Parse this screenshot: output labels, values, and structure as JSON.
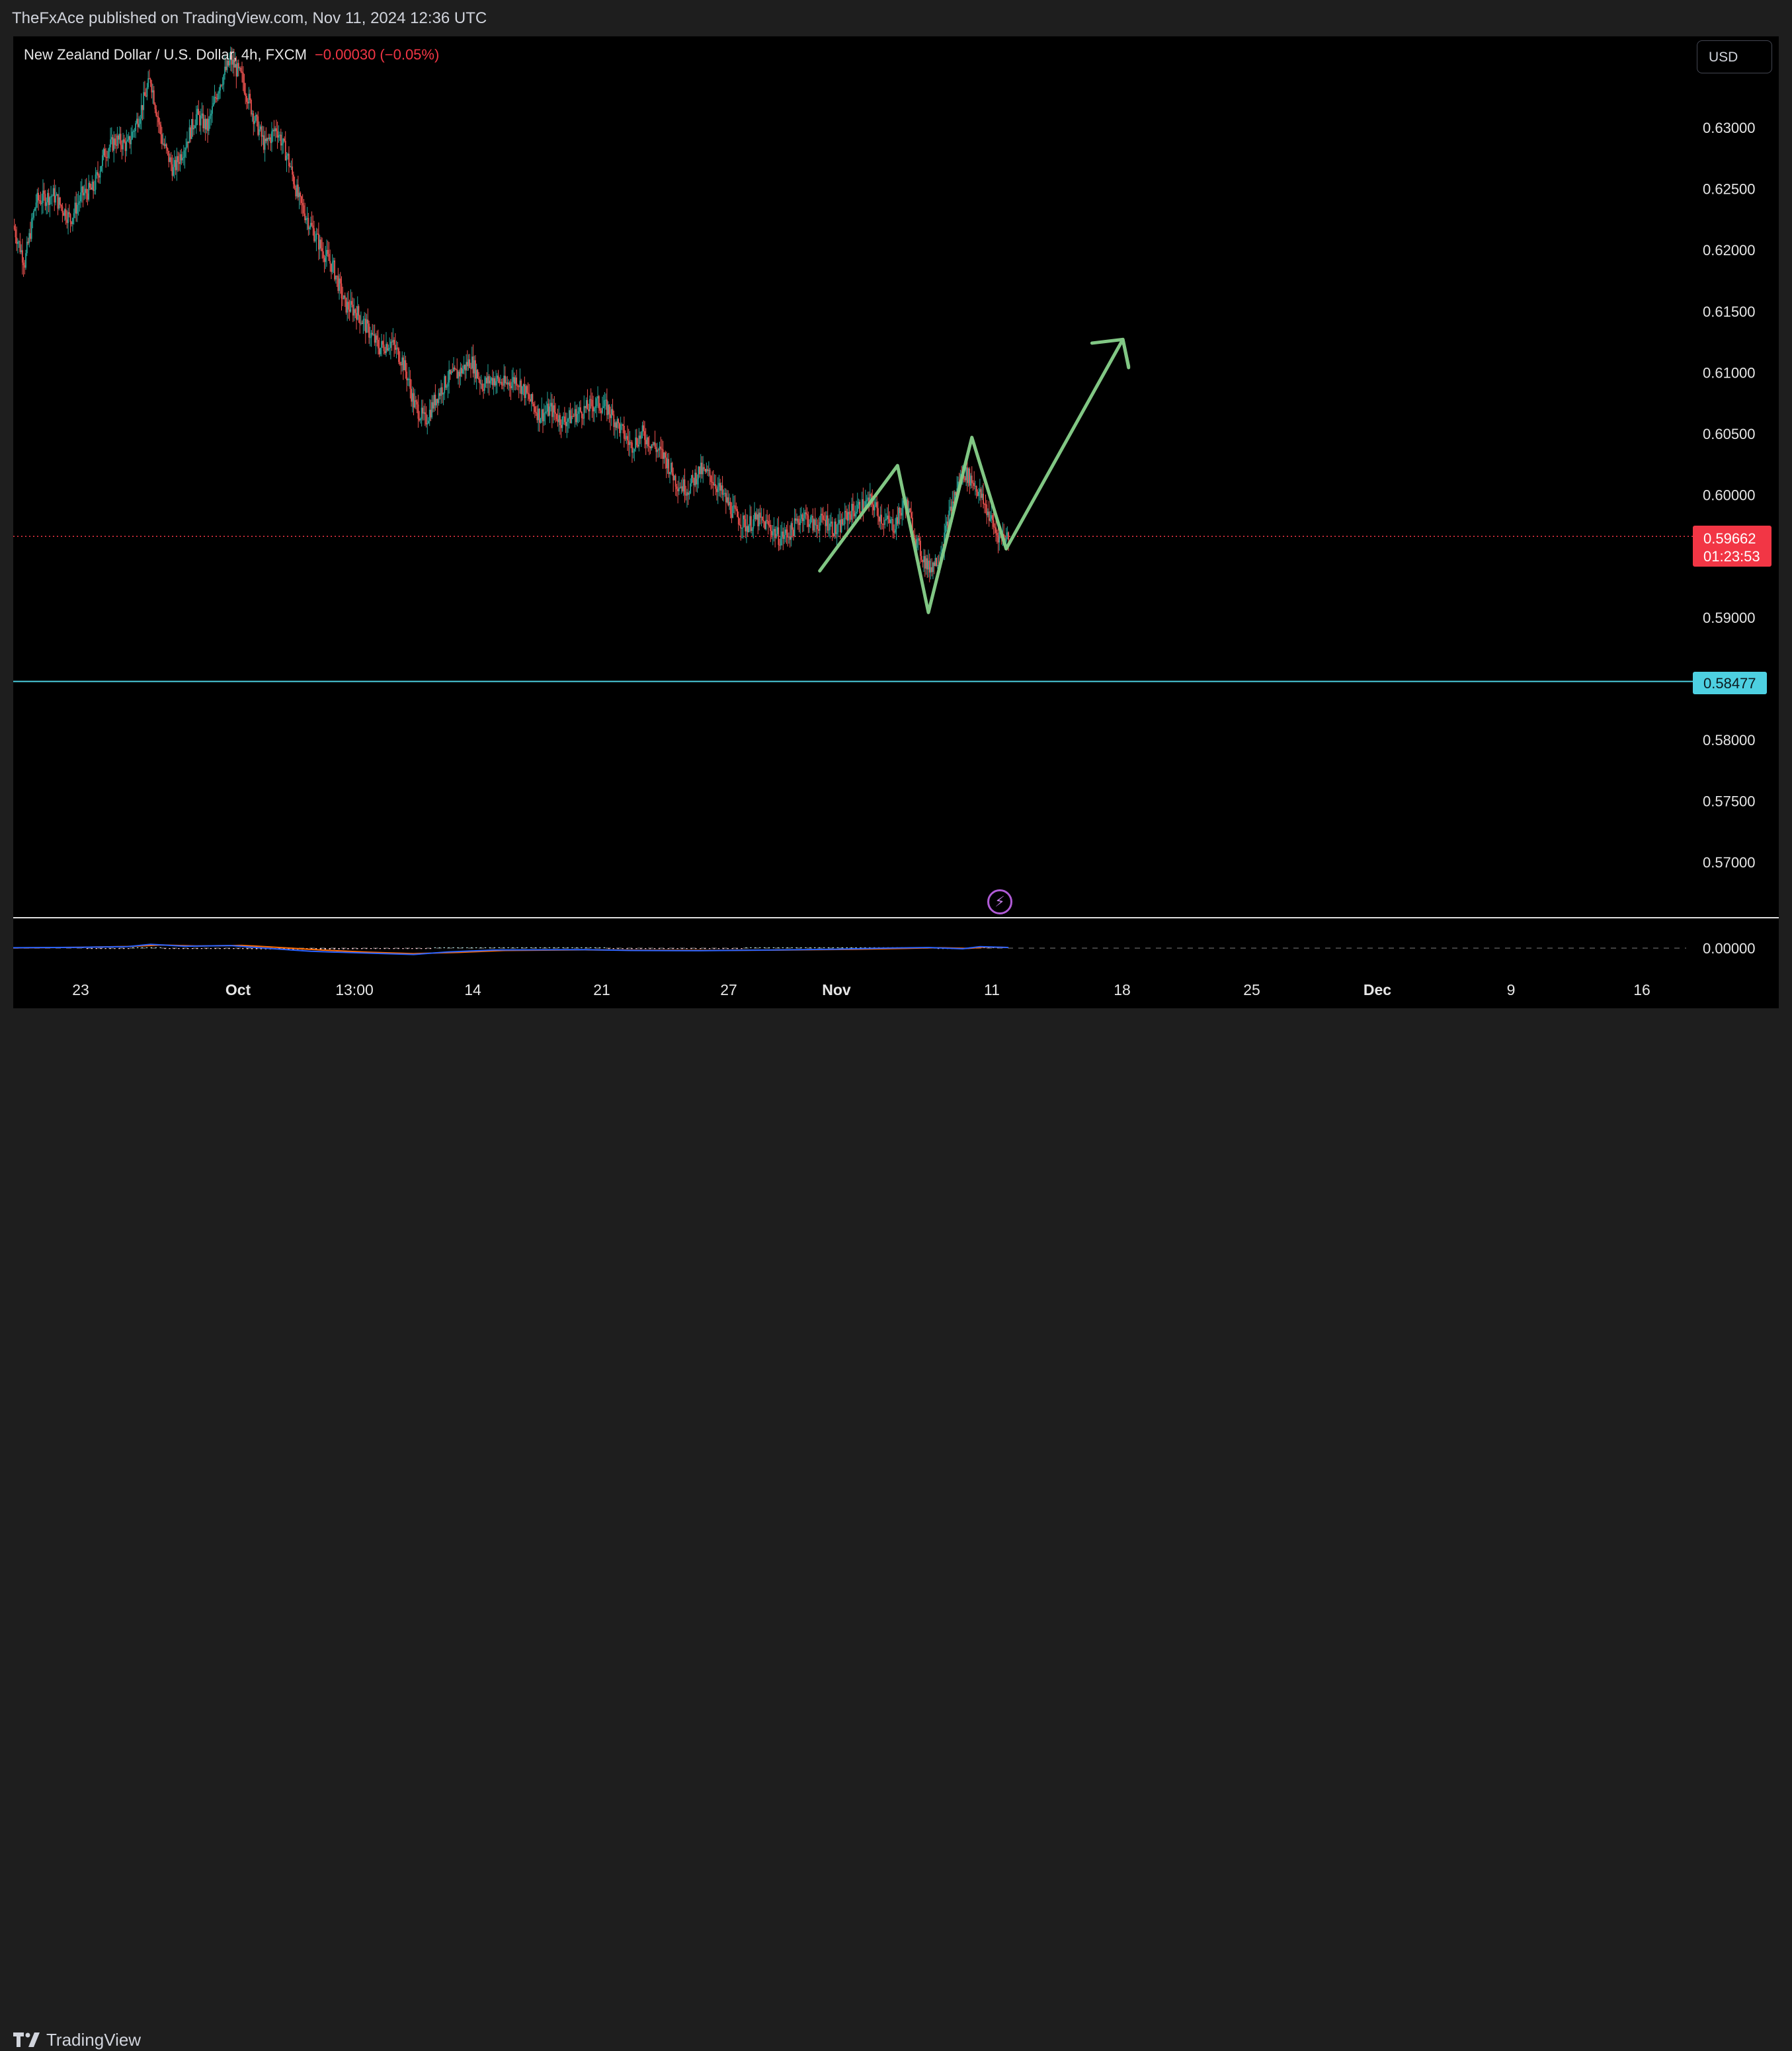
{
  "header": {
    "published": "TheFxAce published on TradingView.com, Nov 11, 2024 12:36 UTC"
  },
  "legend": {
    "symbol": "New Zealand Dollar / U.S. Dollar, 4h, FXCM",
    "change": "−0.00030 (−0.05%)"
  },
  "currency_button": "USD",
  "brand": "TradingView",
  "colors": {
    "up": "#26a69a",
    "down": "#ef5350",
    "drawing": "#81c784",
    "support": "#4dd0e1",
    "current": "#f23645",
    "macd": "#2962ff",
    "signal": "#ff6d00"
  },
  "chart_data": {
    "type": "candlestick",
    "title": "New Zealand Dollar / U.S. Dollar, 4h, FXCM",
    "ylim": [
      0.5665,
      0.6345
    ],
    "y_ticks": [
      "0.63000",
      "0.62500",
      "0.62000",
      "0.61500",
      "0.61000",
      "0.60500",
      "0.60000",
      "0.59000",
      "0.58000",
      "0.57500",
      "0.57000"
    ],
    "x_ticks": [
      "23",
      "Oct",
      "13:00",
      "14",
      "21",
      "27",
      "Nov",
      "11",
      "18",
      "25",
      "Dec",
      "9",
      "16"
    ],
    "last_price": {
      "value": 0.59662,
      "label": "0.59662",
      "countdown": "01:23:53"
    },
    "support_line": {
      "value": 0.58477,
      "label": "0.58477"
    },
    "price_path": [
      [
        0,
        0.622
      ],
      [
        10,
        0.619
      ],
      [
        20,
        0.624
      ],
      [
        35,
        0.6245
      ],
      [
        50,
        0.6225
      ],
      [
        60,
        0.6245
      ],
      [
        70,
        0.625
      ],
      [
        80,
        0.628
      ],
      [
        90,
        0.629
      ],
      [
        100,
        0.6285
      ],
      [
        110,
        0.631
      ],
      [
        120,
        0.634
      ],
      [
        125,
        0.6315
      ],
      [
        130,
        0.629
      ],
      [
        140,
        0.6265
      ],
      [
        150,
        0.6285
      ],
      [
        160,
        0.631
      ],
      [
        170,
        0.63
      ],
      [
        180,
        0.6335
      ],
      [
        190,
        0.6355
      ],
      [
        200,
        0.634
      ],
      [
        210,
        0.631
      ],
      [
        220,
        0.6285
      ],
      [
        230,
        0.63
      ],
      [
        240,
        0.6275
      ],
      [
        250,
        0.624
      ],
      [
        260,
        0.622
      ],
      [
        270,
        0.62
      ],
      [
        280,
        0.6185
      ],
      [
        290,
        0.6155
      ],
      [
        300,
        0.615
      ],
      [
        310,
        0.6135
      ],
      [
        320,
        0.612
      ],
      [
        330,
        0.6125
      ],
      [
        340,
        0.611
      ],
      [
        345,
        0.6095
      ],
      [
        350,
        0.6075
      ],
      [
        360,
        0.606
      ],
      [
        370,
        0.608
      ],
      [
        380,
        0.6095
      ],
      [
        390,
        0.61
      ],
      [
        400,
        0.611
      ],
      [
        410,
        0.609
      ],
      [
        420,
        0.6095
      ],
      [
        430,
        0.609
      ],
      [
        440,
        0.6095
      ],
      [
        450,
        0.608
      ],
      [
        460,
        0.6065
      ],
      [
        470,
        0.607
      ],
      [
        480,
        0.606
      ],
      [
        490,
        0.6065
      ],
      [
        500,
        0.607
      ],
      [
        510,
        0.6075
      ],
      [
        520,
        0.607
      ],
      [
        530,
        0.6055
      ],
      [
        540,
        0.604
      ],
      [
        550,
        0.605
      ],
      [
        560,
        0.604
      ],
      [
        570,
        0.603
      ],
      [
        580,
        0.601
      ],
      [
        590,
        0.6005
      ],
      [
        600,
        0.602
      ],
      [
        610,
        0.6015
      ],
      [
        620,
        0.6
      ],
      [
        630,
        0.5985
      ],
      [
        640,
        0.5975
      ],
      [
        650,
        0.598
      ],
      [
        660,
        0.5975
      ],
      [
        670,
        0.5965
      ],
      [
        680,
        0.597
      ],
      [
        690,
        0.5985
      ],
      [
        700,
        0.5975
      ],
      [
        710,
        0.598
      ],
      [
        720,
        0.597
      ],
      [
        730,
        0.5985
      ],
      [
        740,
        0.599
      ],
      [
        750,
        0.5995
      ],
      [
        760,
        0.598
      ],
      [
        770,
        0.5975
      ],
      [
        780,
        0.5995
      ],
      [
        790,
        0.596
      ],
      [
        800,
        0.594
      ],
      [
        810,
        0.595
      ],
      [
        820,
        0.599
      ],
      [
        830,
        0.602
      ],
      [
        840,
        0.601
      ],
      [
        850,
        0.599
      ],
      [
        860,
        0.5968
      ],
      [
        870,
        0.5966
      ]
    ],
    "projection": [
      [
        705,
        0.5938
      ],
      [
        773,
        0.6024
      ],
      [
        800,
        0.5904
      ],
      [
        838,
        0.6047
      ],
      [
        868,
        0.5956
      ],
      [
        970,
        0.6127
      ],
      [
        975,
        0.6105
      ]
    ],
    "arrowhead": [
      [
        943,
        0.6124
      ],
      [
        970,
        0.6127
      ],
      [
        975,
        0.6104
      ]
    ],
    "macd": {
      "zero_label": "0.00000",
      "macd_line": [
        [
          0,
          0.2
        ],
        [
          60,
          0.4
        ],
        [
          100,
          0.7
        ],
        [
          120,
          1.8
        ],
        [
          150,
          0.9
        ],
        [
          190,
          1.2
        ],
        [
          220,
          0.0
        ],
        [
          260,
          -1.5
        ],
        [
          300,
          -2.2
        ],
        [
          350,
          -3.0
        ],
        [
          380,
          -1.8
        ],
        [
          420,
          -0.9
        ],
        [
          500,
          -0.7
        ],
        [
          540,
          -1.1
        ],
        [
          600,
          -1.2
        ],
        [
          660,
          -0.9
        ],
        [
          720,
          -0.5
        ],
        [
          760,
          0.0
        ],
        [
          800,
          0.3
        ],
        [
          830,
          -0.3
        ],
        [
          845,
          0.7
        ],
        [
          870,
          0.3
        ]
      ],
      "signal_line": [
        [
          0,
          0.1
        ],
        [
          60,
          0.4
        ],
        [
          100,
          0.8
        ],
        [
          130,
          1.5
        ],
        [
          160,
          1.0
        ],
        [
          200,
          1.3
        ],
        [
          230,
          0.4
        ],
        [
          270,
          -0.9
        ],
        [
          310,
          -1.9
        ],
        [
          350,
          -2.6
        ],
        [
          390,
          -2.0
        ],
        [
          430,
          -1.1
        ],
        [
          500,
          -0.8
        ],
        [
          550,
          -1.0
        ],
        [
          610,
          -1.1
        ],
        [
          670,
          -0.9
        ],
        [
          730,
          -0.6
        ],
        [
          780,
          -0.1
        ],
        [
          810,
          0.2
        ],
        [
          835,
          -0.1
        ],
        [
          850,
          0.5
        ],
        [
          870,
          0.3
        ]
      ]
    }
  }
}
